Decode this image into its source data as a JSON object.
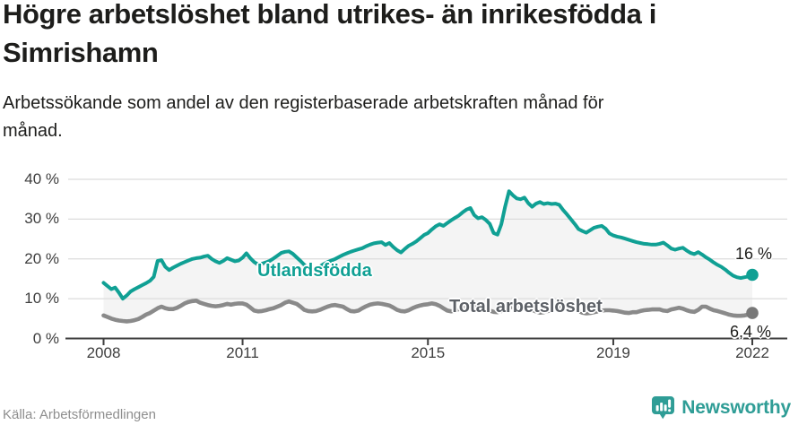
{
  "header": {
    "title": "Högre arbetslöshet bland utrikes- än inrikesfödda i Simrishamn",
    "subtitle": "Arbetssökande som andel av den registerbaserade arbetskraften månad för månad."
  },
  "footer": {
    "source": "Källa: Arbetsförmedlingen",
    "brand": "Newsworthy"
  },
  "colors": {
    "teal_series": "#10a094",
    "gray_series": "#8a8a8a",
    "gray_series_label": "#5d6167",
    "gray_dot": "#787878",
    "area_fill": "#f4f4f4",
    "gridline": "#dcdcdc",
    "axis": "#3e3e3e",
    "value_label": "#1d1d1b",
    "brand_teal": "#2f9d96"
  },
  "chart_data": {
    "type": "line",
    "title": "Högre arbetslöshet bland utrikes- än inrikesfödda i Simrishamn",
    "xlabel": "",
    "ylabel": "",
    "x_start_year": 2008,
    "x_step_months": 1,
    "x_end_label_month": "2022-01",
    "ylim": [
      0,
      40
    ],
    "grid": "horizontal",
    "legend_position": "inline-labels",
    "x_tick_years": [
      2008,
      2011,
      2015,
      2019,
      2022
    ],
    "x_ticks": [
      "2008",
      "2011",
      "2015",
      "2019",
      "2022"
    ],
    "y_tick_values": [
      40,
      30,
      20,
      10,
      0
    ],
    "y_ticks": [
      "40 %",
      "30 %",
      "20 %",
      "10 %",
      "0 %"
    ],
    "y_gridline_values": [
      10,
      20,
      30,
      40
    ],
    "fill_between_series": true,
    "series": [
      {
        "name": "Utlandsfödda",
        "color": "#10a094",
        "end_label": "16 %",
        "end_value": 16,
        "values": [
          14.0,
          13.2,
          12.4,
          12.8,
          11.5,
          10.0,
          10.8,
          11.8,
          12.4,
          12.9,
          13.4,
          13.9,
          14.5,
          15.5,
          19.5,
          19.7,
          18.0,
          17.2,
          17.8,
          18.3,
          18.8,
          19.2,
          19.6,
          20.0,
          20.2,
          20.3,
          20.6,
          20.8,
          20.0,
          19.4,
          19.0,
          19.5,
          20.2,
          19.8,
          19.4,
          19.6,
          20.3,
          21.4,
          20.2,
          19.2,
          18.6,
          18.8,
          19.1,
          19.5,
          20.1,
          20.8,
          21.5,
          21.8,
          21.9,
          21.3,
          20.4,
          19.5,
          18.5,
          17.6,
          17.2,
          17.5,
          18.1,
          18.7,
          19.2,
          19.6,
          20.0,
          20.5,
          21.0,
          21.4,
          21.8,
          22.1,
          22.4,
          22.7,
          23.2,
          23.6,
          23.9,
          24.1,
          24.2,
          23.5,
          24.0,
          23.0,
          22.2,
          21.6,
          22.5,
          23.3,
          23.8,
          24.4,
          25.2,
          26.0,
          26.5,
          27.4,
          28.2,
          28.7,
          28.3,
          29.0,
          29.7,
          30.3,
          30.9,
          31.7,
          32.4,
          32.8,
          31.0,
          30.2,
          30.5,
          29.8,
          28.8,
          26.5,
          26.1,
          28.7,
          33.2,
          37.0,
          36.0,
          35.2,
          35.0,
          35.4,
          34.0,
          33.1,
          33.9,
          34.3,
          33.8,
          34.0,
          33.8,
          33.9,
          33.6,
          32.3,
          31.2,
          30.0,
          28.8,
          27.5,
          27.0,
          26.6,
          27.2,
          27.8,
          28.1,
          28.3,
          27.6,
          26.4,
          25.9,
          25.6,
          25.4,
          25.1,
          24.8,
          24.5,
          24.2,
          24.0,
          23.8,
          23.7,
          23.6,
          23.6,
          23.8,
          24.1,
          23.4,
          22.6,
          22.3,
          22.6,
          22.8,
          22.1,
          21.5,
          21.2,
          21.7,
          21.1,
          20.4,
          19.8,
          19.1,
          18.5,
          18.0,
          17.3,
          16.5,
          15.8,
          15.4,
          15.2,
          15.4,
          15.6,
          16.0
        ]
      },
      {
        "name": "Total arbetslöshet",
        "color": "#8a8a8a",
        "label_color": "#5d6167",
        "dot_color": "#787878",
        "end_label": "6,4 %",
        "end_value": 6.4,
        "values": [
          5.8,
          5.4,
          5.0,
          4.7,
          4.5,
          4.4,
          4.3,
          4.4,
          4.6,
          4.9,
          5.4,
          6.0,
          6.4,
          7.0,
          7.6,
          8.0,
          7.6,
          7.4,
          7.4,
          7.7,
          8.2,
          8.8,
          9.2,
          9.4,
          9.5,
          9.0,
          8.7,
          8.4,
          8.2,
          8.1,
          8.2,
          8.4,
          8.7,
          8.5,
          8.7,
          8.8,
          8.8,
          8.5,
          7.8,
          7.0,
          6.8,
          6.9,
          7.1,
          7.4,
          7.6,
          8.0,
          8.4,
          9.0,
          9.3,
          9.0,
          8.7,
          8.0,
          7.2,
          6.9,
          6.8,
          6.9,
          7.2,
          7.6,
          8.0,
          8.3,
          8.4,
          8.2,
          8.0,
          7.4,
          6.9,
          6.8,
          7.0,
          7.6,
          8.1,
          8.5,
          8.7,
          8.8,
          8.7,
          8.5,
          8.3,
          7.8,
          7.2,
          6.9,
          6.8,
          7.1,
          7.6,
          8.0,
          8.3,
          8.5,
          8.6,
          8.8,
          8.6,
          8.2,
          7.6,
          7.0,
          6.8,
          7.0,
          7.4,
          7.8,
          8.1,
          8.3,
          8.4,
          8.2,
          7.9,
          7.4,
          7.0,
          6.7,
          6.6,
          6.9,
          7.3,
          7.7,
          8.0,
          8.1,
          8.2,
          8.0,
          7.7,
          7.2,
          6.8,
          6.5,
          6.6,
          6.9,
          7.2,
          7.5,
          7.7,
          7.8,
          7.8,
          7.6,
          7.3,
          6.9,
          6.5,
          6.3,
          6.4,
          6.6,
          6.8,
          7.0,
          7.1,
          7.1,
          7.0,
          6.9,
          6.7,
          6.5,
          6.4,
          6.6,
          6.6,
          6.9,
          7.1,
          7.2,
          7.3,
          7.3,
          7.3,
          7.0,
          6.9,
          7.3,
          7.5,
          7.7,
          7.5,
          7.1,
          6.8,
          6.7,
          7.2,
          8.0,
          8.0,
          7.5,
          7.1,
          6.9,
          6.6,
          6.3,
          6.0,
          5.8,
          5.7,
          5.7,
          5.8,
          6.0,
          6.4
        ]
      }
    ]
  }
}
